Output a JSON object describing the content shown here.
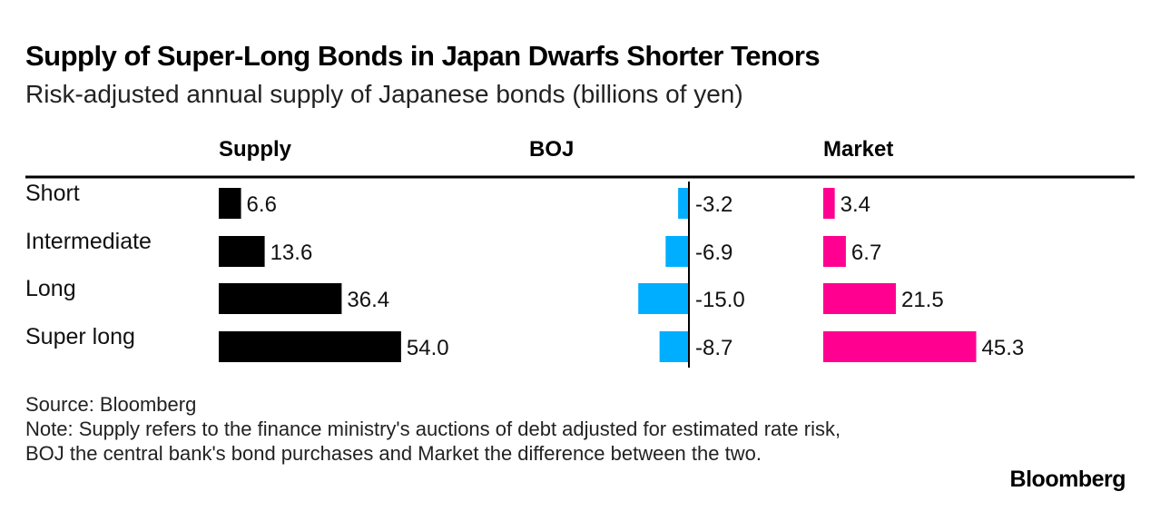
{
  "header": {
    "title": "Supply of Super-Long Bonds in Japan Dwarfs Shorter Tenors",
    "subtitle": "Risk-adjusted annual supply of Japanese bonds (billions of yen)"
  },
  "chart_data": {
    "type": "bar",
    "orientation": "horizontal",
    "categories": [
      "Short",
      "Intermediate",
      "Long",
      "Super long"
    ],
    "series": [
      {
        "name": "Supply",
        "values": [
          6.6,
          13.6,
          36.4,
          54.0
        ],
        "labels": [
          "6.6",
          "13.6",
          "36.4",
          "54.0"
        ],
        "color": "#000000"
      },
      {
        "name": "BOJ",
        "values": [
          -3.2,
          -6.9,
          -15.0,
          -8.7
        ],
        "labels": [
          "-3.2",
          "-6.9",
          "-15.0",
          "-8.7"
        ],
        "color": "#00aeff"
      },
      {
        "name": "Market",
        "values": [
          3.4,
          6.7,
          21.5,
          45.3
        ],
        "labels": [
          "3.4",
          "6.7",
          "21.5",
          "45.3"
        ],
        "color": "#ff0090"
      }
    ],
    "grid": false
  },
  "footer": {
    "source": "Source: Bloomberg",
    "note": "Note: Supply refers to the finance ministry's auctions of debt adjusted for estimated rate risk, BOJ the central bank's bond purchases and Market the difference between the two."
  },
  "branding": {
    "logo": "Bloomberg"
  }
}
